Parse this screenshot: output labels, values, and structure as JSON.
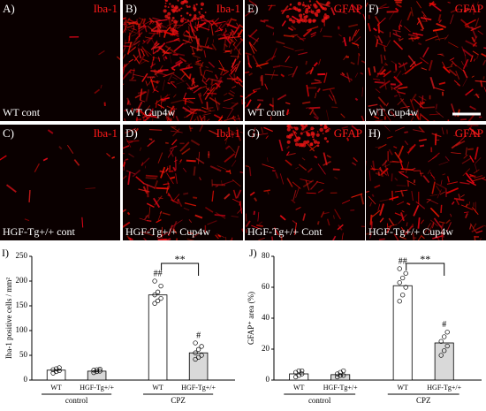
{
  "panels": [
    {
      "label": "A)",
      "stain": "Iba-1",
      "condition": "WT  cont"
    },
    {
      "label": "B)",
      "stain": "Iba-1",
      "condition": "WT  Cup4w"
    },
    {
      "label": "E)",
      "stain": "GFAP",
      "condition": "WT  cont"
    },
    {
      "label": "F)",
      "stain": "GFAP",
      "condition": "WT  Cup4w"
    },
    {
      "label": "C)",
      "stain": "Iba-1",
      "condition": "HGF-Tg+/+  cont"
    },
    {
      "label": "D)",
      "stain": "Iba-1",
      "condition": "HGF-Tg+/+  Cup4w"
    },
    {
      "label": "G)",
      "stain": "GFAP",
      "condition": "HGF-Tg+/+  Cont"
    },
    {
      "label": "H)",
      "stain": "GFAP",
      "condition": "HGF-Tg+/+  Cup4w"
    }
  ],
  "chart_data": [
    {
      "type": "bar",
      "label": "I)",
      "ylabel": "Iba-1 positive  cells / mm²",
      "categories": [
        "WT",
        "HGF-Tg+/+",
        "WT",
        "HGF-Tg+/+"
      ],
      "groups": [
        "control",
        "CPZ"
      ],
      "values": [
        20,
        18,
        172,
        55
      ],
      "bar_colors": [
        "#ffffff",
        "#d9d9d9",
        "#ffffff",
        "#d9d9d9"
      ],
      "points": [
        [
          14,
          17,
          19,
          21,
          23,
          25
        ],
        [
          15,
          17,
          18,
          20,
          21,
          22
        ],
        [
          155,
          160,
          165,
          172,
          178,
          190,
          200
        ],
        [
          42,
          46,
          50,
          55,
          62,
          68,
          75
        ]
      ],
      "bar_annotations": [
        null,
        null,
        "##",
        "#"
      ],
      "significance": "**",
      "ylim": [
        0,
        250
      ],
      "yticks": [
        0,
        50,
        100,
        150,
        200,
        250
      ]
    },
    {
      "type": "bar",
      "label": "J)",
      "ylabel": "GFAP⁺ area (%)",
      "categories": [
        "WT",
        "HGF-Tg+/+",
        "WT",
        "HGF-Tg+/+"
      ],
      "groups": [
        "control",
        "CPZ"
      ],
      "values": [
        4,
        3.5,
        61,
        24
      ],
      "bar_colors": [
        "#ffffff",
        "#d9d9d9",
        "#ffffff",
        "#d9d9d9"
      ],
      "points": [
        [
          2,
          3,
          4,
          5,
          6,
          6
        ],
        [
          2,
          3,
          3,
          4,
          5,
          6
        ],
        [
          51,
          55,
          60,
          63,
          66,
          69,
          72
        ],
        [
          16,
          19,
          22,
          25,
          28,
          31
        ]
      ],
      "bar_annotations": [
        null,
        null,
        "##",
        "#"
      ],
      "significance": "**",
      "ylim": [
        0,
        80
      ],
      "yticks": [
        0,
        20,
        40,
        60,
        80
      ]
    }
  ]
}
